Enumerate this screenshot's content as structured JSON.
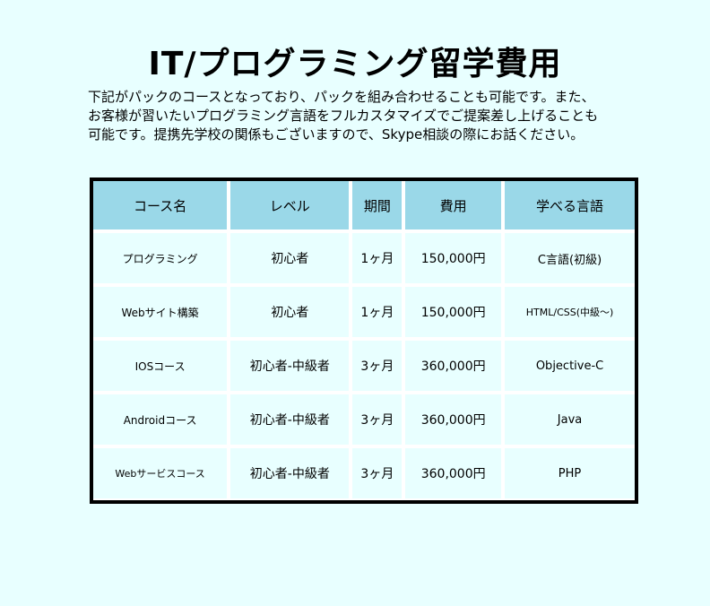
{
  "title": "IT/プログラミング留学費用",
  "intro": [
    "下記がパックのコースとなっており、パックを組み合わせることも可能です。また、",
    "お客様が習いたいプログラミング言語をフルカスタマイズでご提案差し上げることも",
    "可能です。提携先学校の関係もございますので、Skype相談の際にお話ください。"
  ],
  "colors": {
    "background": "#e8ffff",
    "header": "#9ad8e8",
    "border": "#000000"
  },
  "table": {
    "headers": [
      "コース名",
      "レベル",
      "期間",
      "費用",
      "学べる言語"
    ],
    "rows": [
      [
        "プログラミング",
        "初心者",
        "1ヶ月",
        "150,000円",
        "C言語(初級)"
      ],
      [
        "Webサイト構築",
        "初心者",
        "1ヶ月",
        "150,000円",
        "HTML/CSS(中級～)"
      ],
      [
        "IOSコース",
        "初心者-中級者",
        "3ヶ月",
        "360,000円",
        "Objective-C"
      ],
      [
        "Androidコース",
        "初心者-中級者",
        "3ヶ月",
        "360,000円",
        "Java"
      ],
      [
        "Webサービスコース",
        "初心者-中級者",
        "3ヶ月",
        "360,000円",
        "PHP"
      ]
    ]
  }
}
